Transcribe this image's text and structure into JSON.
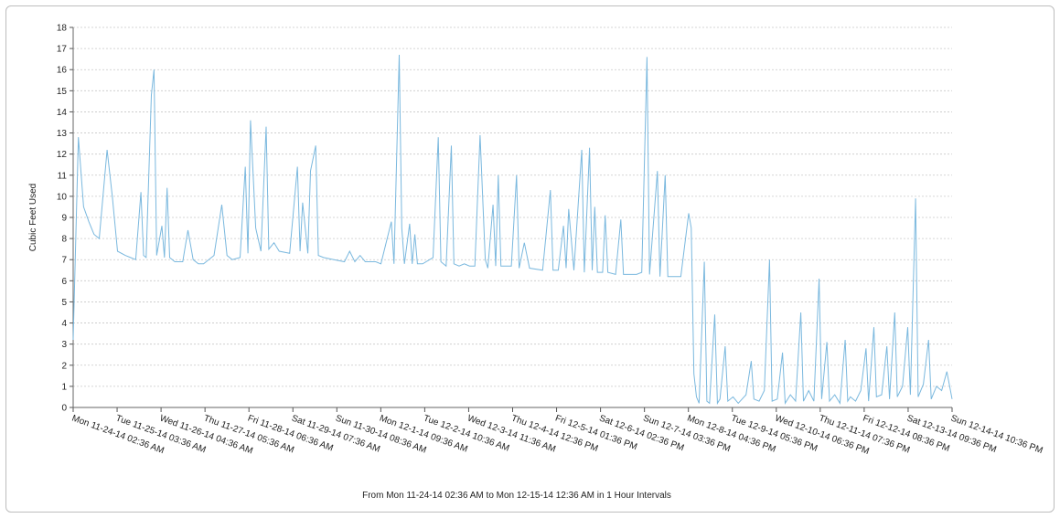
{
  "chart_data": {
    "type": "line",
    "title": "",
    "ylabel": "Cubic Feet Used",
    "xlabel": "From Mon 11-24-14 02:36 AM to Mon 12-15-14 12:36 AM in 1 Hour Intervals",
    "ylim": [
      0,
      18
    ],
    "yticks": [
      0,
      1,
      2,
      3,
      4,
      5,
      6,
      7,
      8,
      9,
      10,
      11,
      12,
      13,
      14,
      15,
      16,
      17,
      18
    ],
    "grid": true,
    "line_color": "#7ab8de",
    "x_tick_labels": [
      "Mon 11-24-14 02:36 AM",
      "Tue 11-25-14 03:36 AM",
      "Wed 11-26-14 04:36 AM",
      "Thu 11-27-14 05:36 AM",
      "Fri 11-28-14 06:36 AM",
      "Sat 11-29-14 07:36 AM",
      "Sun 11-30-14 08:36 AM",
      "Mon 12-1-14 09:36 AM",
      "Tue 12-2-14 10:36 AM",
      "Wed 12-3-14 11:36 AM",
      "Thu 12-4-14 12:36 PM",
      "Fri 12-5-14 01:36 PM",
      "Sat 12-6-14 02:36 PM",
      "Sun 12-7-14 03:36 PM",
      "Mon 12-8-14 04:36 PM",
      "Tue 12-9-14 05:36 PM",
      "Wed 12-10-14 06:36 PM",
      "Thu 12-11-14 07:36 PM",
      "Fri 12-12-14 08:36 PM",
      "Sat 12-13-14 09:36 PM",
      "Sun 12-14-14 10:36 PM"
    ],
    "series": [
      {
        "values": [
          [
            0,
            3.2
          ],
          [
            2,
            12.8
          ],
          [
            4,
            9.5
          ],
          [
            6,
            8.8
          ],
          [
            8,
            8.2
          ],
          [
            10,
            8.0
          ],
          [
            13,
            12.2
          ],
          [
            15,
            10.0
          ],
          [
            17,
            7.4
          ],
          [
            20,
            7.2
          ],
          [
            22,
            7.1
          ],
          [
            24,
            7.0
          ],
          [
            26,
            10.2
          ],
          [
            27,
            7.2
          ],
          [
            28,
            7.1
          ],
          [
            30,
            14.8
          ],
          [
            31,
            16.0
          ],
          [
            32,
            7.2
          ],
          [
            34,
            8.6
          ],
          [
            35,
            7.1
          ],
          [
            36,
            10.4
          ],
          [
            37,
            7.1
          ],
          [
            39,
            6.9
          ],
          [
            42,
            6.9
          ],
          [
            44,
            8.4
          ],
          [
            46,
            7.0
          ],
          [
            48,
            6.8
          ],
          [
            50,
            6.8
          ],
          [
            54,
            7.2
          ],
          [
            57,
            9.6
          ],
          [
            59,
            7.2
          ],
          [
            61,
            7.0
          ],
          [
            64,
            7.1
          ],
          [
            66,
            11.4
          ],
          [
            67,
            7.3
          ],
          [
            68,
            13.6
          ],
          [
            70,
            8.5
          ],
          [
            72,
            7.4
          ],
          [
            74,
            13.3
          ],
          [
            75,
            7.5
          ],
          [
            77,
            7.8
          ],
          [
            79,
            7.4
          ],
          [
            83,
            7.3
          ],
          [
            86,
            11.4
          ],
          [
            87,
            7.4
          ],
          [
            88,
            9.7
          ],
          [
            90,
            7.3
          ],
          [
            91,
            11.2
          ],
          [
            93,
            12.4
          ],
          [
            94,
            7.2
          ],
          [
            96,
            7.1
          ],
          [
            100,
            7.0
          ],
          [
            104,
            6.9
          ],
          [
            106,
            7.4
          ],
          [
            108,
            6.9
          ],
          [
            110,
            7.2
          ],
          [
            112,
            6.9
          ],
          [
            116,
            6.9
          ],
          [
            118,
            6.8
          ],
          [
            122,
            8.8
          ],
          [
            123,
            6.8
          ],
          [
            125,
            16.7
          ],
          [
            126,
            8.5
          ],
          [
            127,
            6.8
          ],
          [
            129,
            8.7
          ],
          [
            130,
            6.8
          ],
          [
            131,
            8.2
          ],
          [
            132,
            6.8
          ],
          [
            134,
            6.8
          ],
          [
            138,
            7.1
          ],
          [
            140,
            12.8
          ],
          [
            141,
            6.9
          ],
          [
            143,
            6.7
          ],
          [
            145,
            12.4
          ],
          [
            146,
            6.8
          ],
          [
            148,
            6.7
          ],
          [
            150,
            6.8
          ],
          [
            152,
            6.7
          ],
          [
            154,
            6.7
          ],
          [
            156,
            12.9
          ],
          [
            158,
            7.0
          ],
          [
            159,
            6.6
          ],
          [
            161,
            9.6
          ],
          [
            162,
            6.7
          ],
          [
            163,
            11.0
          ],
          [
            164,
            6.7
          ],
          [
            166,
            6.7
          ],
          [
            168,
            6.7
          ],
          [
            170,
            11.0
          ],
          [
            171,
            6.6
          ],
          [
            173,
            7.8
          ],
          [
            175,
            6.6
          ],
          [
            180,
            6.5
          ],
          [
            183,
            10.3
          ],
          [
            184,
            6.5
          ],
          [
            186,
            6.5
          ],
          [
            188,
            8.6
          ],
          [
            189,
            6.6
          ],
          [
            190,
            9.4
          ],
          [
            192,
            6.5
          ],
          [
            195,
            12.2
          ],
          [
            196,
            6.4
          ],
          [
            198,
            12.3
          ],
          [
            199,
            6.5
          ],
          [
            200,
            9.5
          ],
          [
            201,
            6.4
          ],
          [
            203,
            6.4
          ],
          [
            204,
            9.1
          ],
          [
            205,
            6.4
          ],
          [
            208,
            6.3
          ],
          [
            210,
            8.9
          ],
          [
            211,
            6.3
          ],
          [
            214,
            6.3
          ],
          [
            216,
            6.3
          ],
          [
            218,
            6.4
          ],
          [
            220,
            16.6
          ],
          [
            221,
            6.3
          ],
          [
            224,
            11.2
          ],
          [
            225,
            6.2
          ],
          [
            227,
            11.0
          ],
          [
            228,
            6.2
          ],
          [
            231,
            6.2
          ],
          [
            233,
            6.2
          ],
          [
            236,
            9.2
          ],
          [
            237,
            8.5
          ],
          [
            238,
            1.6
          ],
          [
            239,
            0.5
          ],
          [
            240,
            0.2
          ],
          [
            242,
            6.9
          ],
          [
            243,
            0.3
          ],
          [
            244,
            0.2
          ],
          [
            246,
            4.4
          ],
          [
            247,
            0.2
          ],
          [
            248,
            0.4
          ],
          [
            250,
            2.9
          ],
          [
            251,
            0.3
          ],
          [
            253,
            0.5
          ],
          [
            255,
            0.2
          ],
          [
            258,
            0.6
          ],
          [
            260,
            2.2
          ],
          [
            261,
            0.4
          ],
          [
            263,
            0.3
          ],
          [
            265,
            0.8
          ],
          [
            267,
            7.0
          ],
          [
            268,
            0.3
          ],
          [
            270,
            0.4
          ],
          [
            272,
            2.6
          ],
          [
            273,
            0.2
          ],
          [
            275,
            0.6
          ],
          [
            277,
            0.3
          ],
          [
            279,
            4.5
          ],
          [
            280,
            0.3
          ],
          [
            282,
            0.8
          ],
          [
            284,
            0.3
          ],
          [
            286,
            6.1
          ],
          [
            287,
            0.4
          ],
          [
            289,
            3.1
          ],
          [
            290,
            0.3
          ],
          [
            292,
            0.6
          ],
          [
            294,
            0.2
          ],
          [
            296,
            3.2
          ],
          [
            297,
            0.3
          ],
          [
            298,
            0.5
          ],
          [
            300,
            0.3
          ],
          [
            302,
            0.8
          ],
          [
            304,
            2.8
          ],
          [
            305,
            0.3
          ],
          [
            307,
            3.8
          ],
          [
            308,
            0.5
          ],
          [
            310,
            0.6
          ],
          [
            312,
            2.9
          ],
          [
            313,
            0.4
          ],
          [
            315,
            4.5
          ],
          [
            316,
            0.5
          ],
          [
            318,
            1.0
          ],
          [
            320,
            3.8
          ],
          [
            321,
            0.6
          ],
          [
            323,
            9.9
          ],
          [
            324,
            0.5
          ],
          [
            326,
            1.1
          ],
          [
            328,
            3.2
          ],
          [
            329,
            0.4
          ],
          [
            331,
            1.0
          ],
          [
            333,
            0.8
          ],
          [
            335,
            1.7
          ],
          [
            337,
            0.4
          ]
        ]
      }
    ]
  }
}
